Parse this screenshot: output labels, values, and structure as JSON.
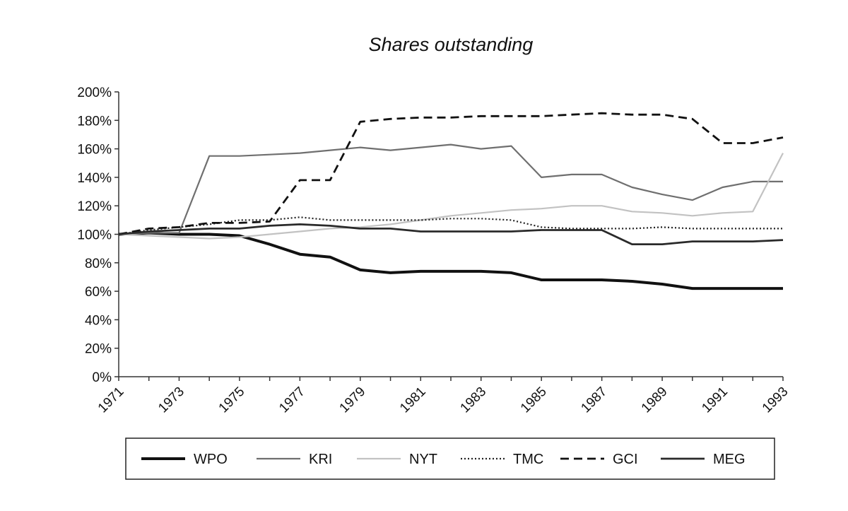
{
  "chart_data": {
    "type": "line",
    "title": "Shares outstanding",
    "xlabel": "",
    "ylabel": "",
    "x_ticks": [
      "1971",
      "1973",
      "1975",
      "1977",
      "1979",
      "1981",
      "1983",
      "1985",
      "1987",
      "1989",
      "1991",
      "1993"
    ],
    "xlim": [
      1971,
      1993
    ],
    "y_ticks": [
      "0%",
      "20%",
      "40%",
      "60%",
      "80%",
      "100%",
      "120%",
      "140%",
      "160%",
      "180%",
      "200%"
    ],
    "ylim": [
      0,
      200
    ],
    "grid": false,
    "legend_position": "bottom",
    "series": [
      {
        "name": "WPO",
        "color": "#111111",
        "dash": "solid",
        "weight": "heavy",
        "points": [
          [
            1971,
            100
          ],
          [
            1972,
            101
          ],
          [
            1973,
            100
          ],
          [
            1974,
            100
          ],
          [
            1975,
            99
          ],
          [
            1976,
            93
          ],
          [
            1977,
            86
          ],
          [
            1978,
            84
          ],
          [
            1979,
            75
          ],
          [
            1980,
            73
          ],
          [
            1981,
            74
          ],
          [
            1982,
            74
          ],
          [
            1983,
            74
          ],
          [
            1984,
            73
          ],
          [
            1985,
            68
          ],
          [
            1986,
            68
          ],
          [
            1987,
            68
          ],
          [
            1988,
            67
          ],
          [
            1989,
            65
          ],
          [
            1990,
            62
          ],
          [
            1991,
            62
          ],
          [
            1992,
            62
          ],
          [
            1993,
            62
          ]
        ]
      },
      {
        "name": "KRI",
        "color": "#6f6f6f",
        "dash": "solid",
        "weight": "normal",
        "points": [
          [
            1971,
            100
          ],
          [
            1972,
            101
          ],
          [
            1973,
            101
          ],
          [
            1974,
            155
          ],
          [
            1975,
            155
          ],
          [
            1976,
            156
          ],
          [
            1977,
            157
          ],
          [
            1978,
            159
          ],
          [
            1979,
            161
          ],
          [
            1980,
            159
          ],
          [
            1981,
            161
          ],
          [
            1982,
            163
          ],
          [
            1983,
            160
          ],
          [
            1984,
            162
          ],
          [
            1985,
            140
          ],
          [
            1986,
            142
          ],
          [
            1987,
            142
          ],
          [
            1988,
            133
          ],
          [
            1989,
            128
          ],
          [
            1990,
            124
          ],
          [
            1991,
            133
          ],
          [
            1992,
            137
          ],
          [
            1993,
            137
          ]
        ]
      },
      {
        "name": "NYT",
        "color": "#c2c2c2",
        "dash": "solid",
        "weight": "normal",
        "points": [
          [
            1971,
            100
          ],
          [
            1972,
            99
          ],
          [
            1973,
            98
          ],
          [
            1974,
            97
          ],
          [
            1975,
            98
          ],
          [
            1976,
            100
          ],
          [
            1977,
            102
          ],
          [
            1978,
            104
          ],
          [
            1979,
            105
          ],
          [
            1980,
            107
          ],
          [
            1981,
            110
          ],
          [
            1982,
            113
          ],
          [
            1983,
            115
          ],
          [
            1984,
            117
          ],
          [
            1985,
            118
          ],
          [
            1986,
            120
          ],
          [
            1987,
            120
          ],
          [
            1988,
            116
          ],
          [
            1989,
            115
          ],
          [
            1990,
            113
          ],
          [
            1991,
            115
          ],
          [
            1992,
            116
          ],
          [
            1993,
            157
          ]
        ]
      },
      {
        "name": "TMC",
        "color": "#222222",
        "dash": "dotted",
        "weight": "normal",
        "points": [
          [
            1971,
            100
          ],
          [
            1972,
            103
          ],
          [
            1973,
            105
          ],
          [
            1974,
            107
          ],
          [
            1975,
            110
          ],
          [
            1976,
            110
          ],
          [
            1977,
            112
          ],
          [
            1978,
            110
          ],
          [
            1979,
            110
          ],
          [
            1980,
            110
          ],
          [
            1981,
            110
          ],
          [
            1982,
            111
          ],
          [
            1983,
            111
          ],
          [
            1984,
            110
          ],
          [
            1985,
            105
          ],
          [
            1986,
            104
          ],
          [
            1987,
            104
          ],
          [
            1988,
            104
          ],
          [
            1989,
            105
          ],
          [
            1990,
            104
          ],
          [
            1991,
            104
          ],
          [
            1992,
            104
          ],
          [
            1993,
            104
          ]
        ]
      },
      {
        "name": "GCI",
        "color": "#111111",
        "dash": "dashed",
        "weight": "medium",
        "points": [
          [
            1971,
            100
          ],
          [
            1972,
            104
          ],
          [
            1973,
            105
          ],
          [
            1974,
            108
          ],
          [
            1975,
            108
          ],
          [
            1976,
            109
          ],
          [
            1977,
            138
          ],
          [
            1978,
            138
          ],
          [
            1979,
            179
          ],
          [
            1980,
            181
          ],
          [
            1981,
            182
          ],
          [
            1982,
            182
          ],
          [
            1983,
            183
          ],
          [
            1984,
            183
          ],
          [
            1985,
            183
          ],
          [
            1986,
            184
          ],
          [
            1987,
            185
          ],
          [
            1988,
            184
          ],
          [
            1989,
            184
          ],
          [
            1990,
            181
          ],
          [
            1991,
            164
          ],
          [
            1992,
            164
          ],
          [
            1993,
            168
          ]
        ]
      },
      {
        "name": "MEG",
        "color": "#2a2a2a",
        "dash": "solid",
        "weight": "medium",
        "points": [
          [
            1971,
            100
          ],
          [
            1972,
            102
          ],
          [
            1973,
            103
          ],
          [
            1974,
            104
          ],
          [
            1975,
            104
          ],
          [
            1976,
            106
          ],
          [
            1977,
            107
          ],
          [
            1978,
            106
          ],
          [
            1979,
            104
          ],
          [
            1980,
            104
          ],
          [
            1981,
            102
          ],
          [
            1982,
            102
          ],
          [
            1983,
            102
          ],
          [
            1984,
            102
          ],
          [
            1985,
            103
          ],
          [
            1986,
            103
          ],
          [
            1987,
            103
          ],
          [
            1988,
            93
          ],
          [
            1989,
            93
          ],
          [
            1990,
            95
          ],
          [
            1991,
            95
          ],
          [
            1992,
            95
          ],
          [
            1993,
            96
          ]
        ]
      }
    ]
  }
}
